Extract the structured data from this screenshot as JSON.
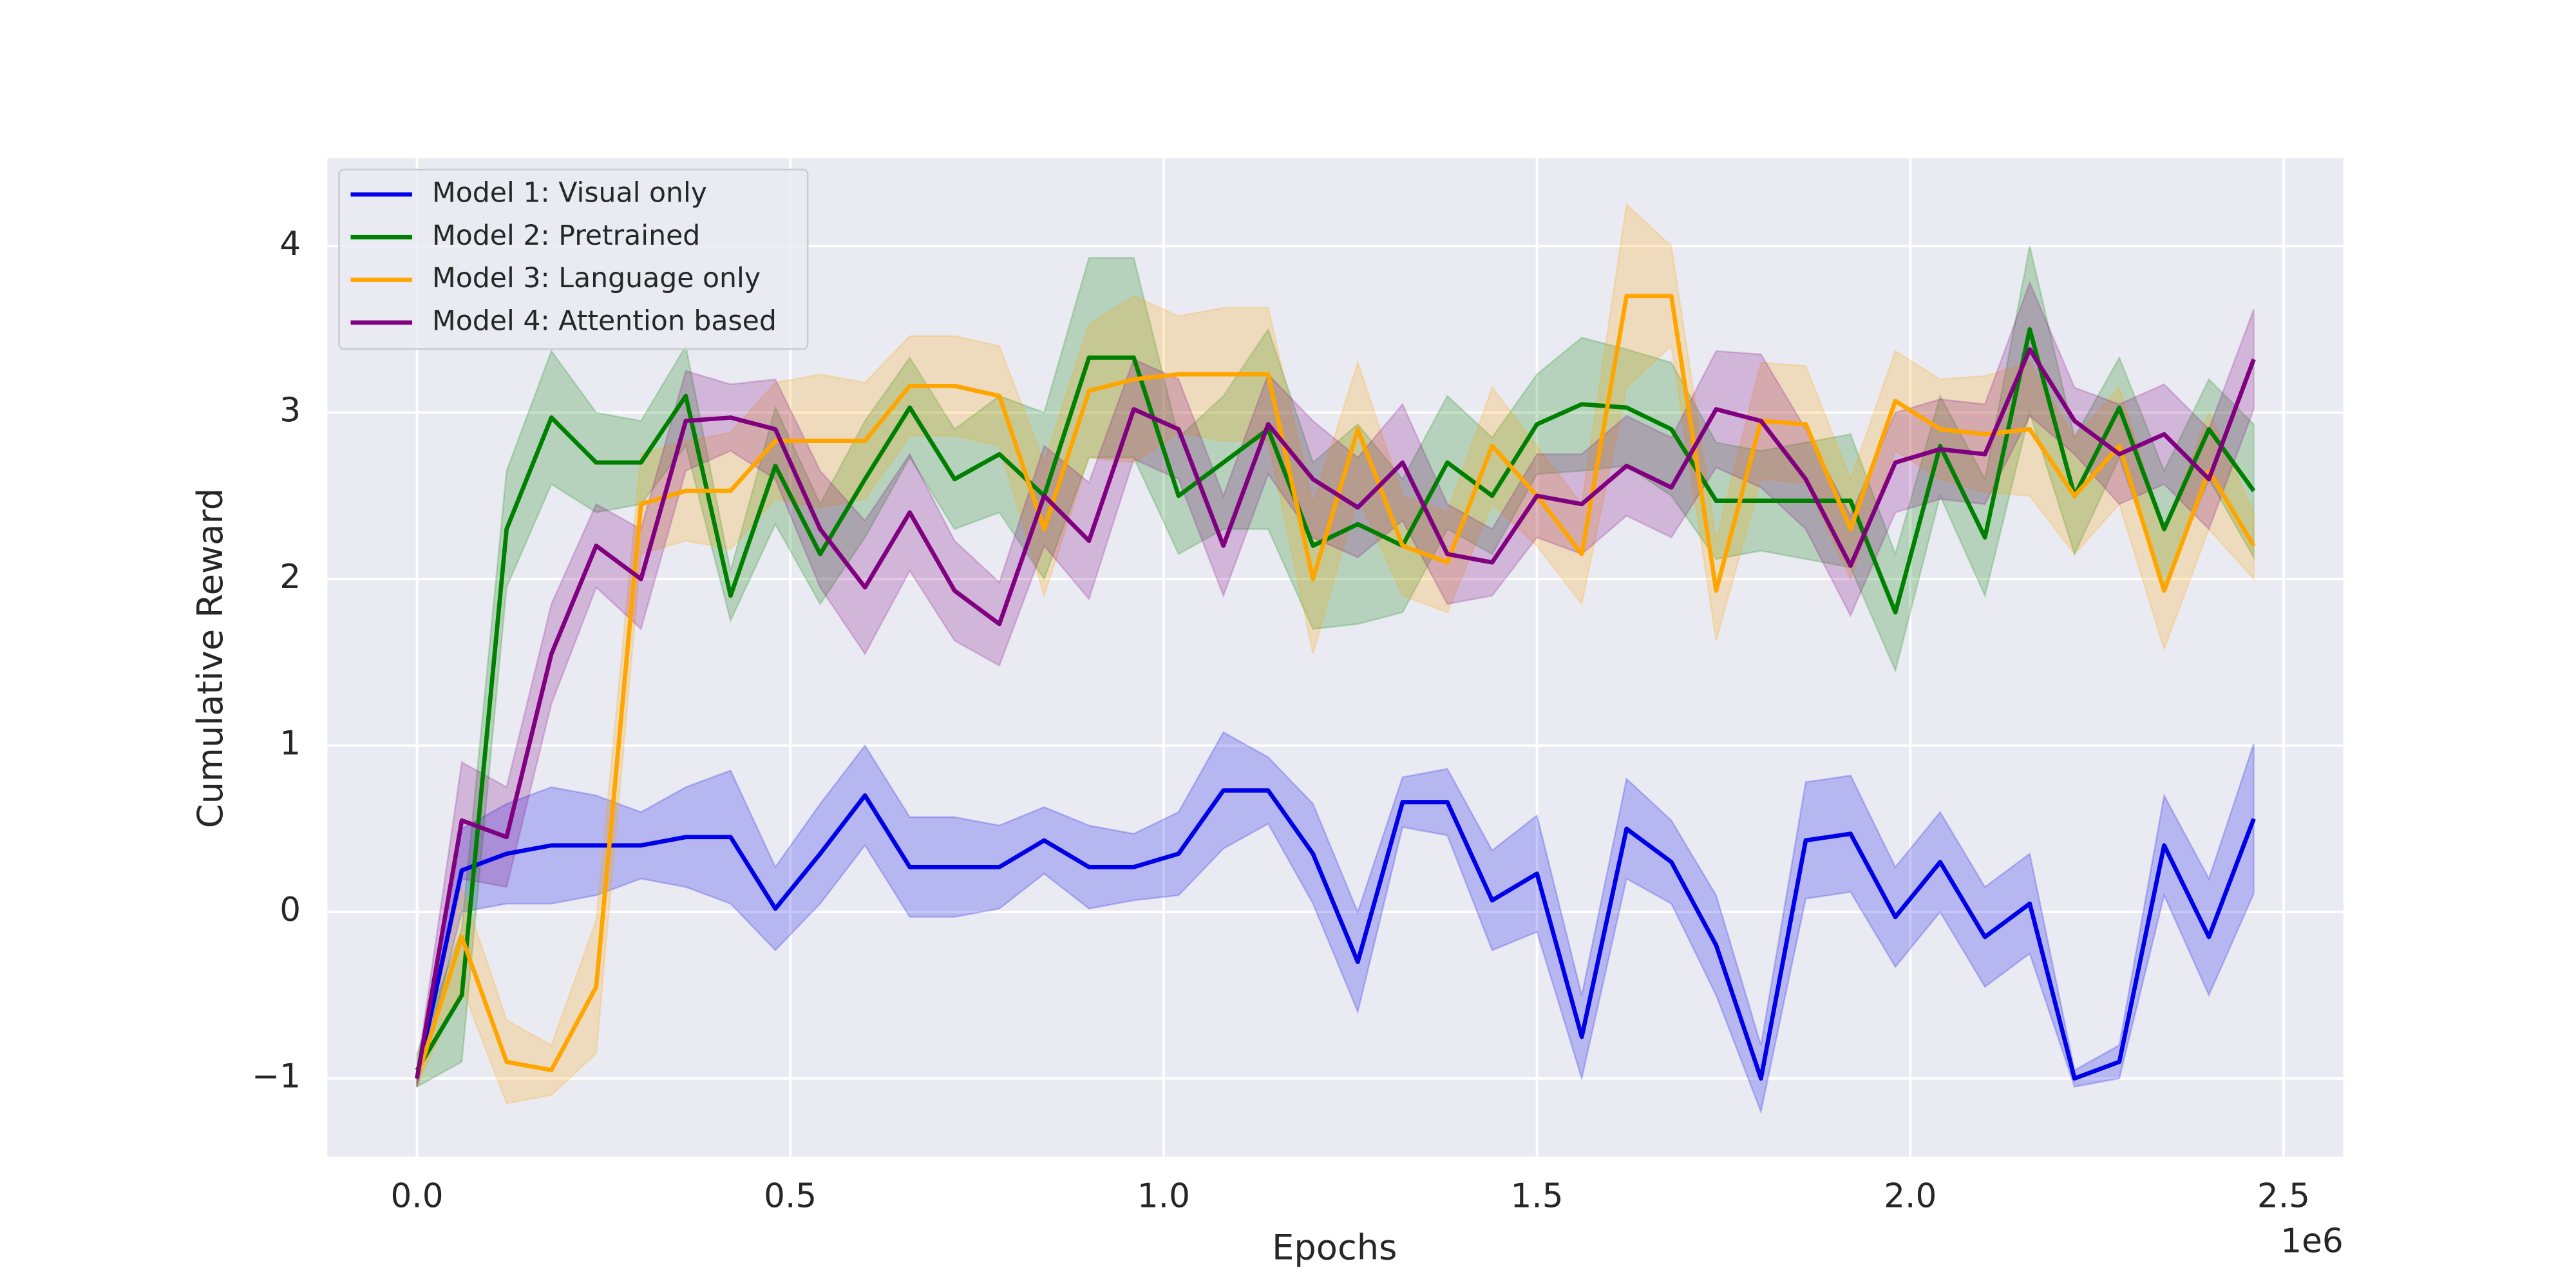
{
  "chart_data": {
    "type": "line",
    "xlabel": "Epochs",
    "ylabel": "Cumulative Reward",
    "x_offset_label": "1e6",
    "x": [
      0,
      0.06,
      0.12,
      0.18,
      0.24,
      0.3,
      0.36,
      0.42,
      0.48,
      0.54,
      0.6,
      0.66,
      0.72,
      0.78,
      0.84,
      0.9,
      0.96,
      1.02,
      1.08,
      1.14,
      1.2,
      1.26,
      1.32,
      1.38,
      1.44,
      1.5,
      1.56,
      1.62,
      1.68,
      1.74,
      1.8,
      1.86,
      1.92,
      1.98,
      2.04,
      2.1,
      2.16,
      2.22,
      2.28,
      2.34,
      2.4,
      2.46
    ],
    "series": [
      {
        "name": "Model 1: Visual only",
        "color": "#0000e6",
        "values": [
          -1,
          0.25,
          0.35,
          0.4,
          0.4,
          0.4,
          0.45,
          0.45,
          0.02,
          0.35,
          0.7,
          0.27,
          0.27,
          0.27,
          0.43,
          0.27,
          0.27,
          0.35,
          0.73,
          0.73,
          0.35,
          -0.3,
          0.66,
          0.66,
          0.07,
          0.23,
          -0.75,
          0.5,
          0.3,
          -0.2,
          -1.0,
          0.43,
          0.47,
          -0.03,
          0.3,
          -0.15,
          0.05,
          -1.0,
          -0.9,
          0.4,
          -0.15,
          0.56
        ],
        "errors": [
          0.05,
          0.25,
          0.3,
          0.35,
          0.3,
          0.2,
          0.3,
          0.4,
          0.25,
          0.3,
          0.3,
          0.3,
          0.3,
          0.25,
          0.2,
          0.25,
          0.2,
          0.25,
          0.35,
          0.2,
          0.3,
          0.3,
          0.15,
          0.2,
          0.3,
          0.35,
          0.25,
          0.3,
          0.25,
          0.3,
          0.2,
          0.35,
          0.35,
          0.3,
          0.3,
          0.3,
          0.3,
          0.05,
          0.1,
          0.3,
          0.35,
          0.45
        ]
      },
      {
        "name": "Model 2: Pretrained",
        "color": "#008000",
        "values": [
          -0.95,
          -0.5,
          2.3,
          2.97,
          2.7,
          2.7,
          3.1,
          1.9,
          2.68,
          2.15,
          2.6,
          3.03,
          2.6,
          2.75,
          2.5,
          3.33,
          3.33,
          2.5,
          2.7,
          2.9,
          2.2,
          2.33,
          2.2,
          2.7,
          2.5,
          2.93,
          3.05,
          3.03,
          2.9,
          2.47,
          2.47,
          2.47,
          2.47,
          1.8,
          2.8,
          2.25,
          3.5,
          2.5,
          3.03,
          2.3,
          2.9,
          2.53
        ],
        "errors": [
          0.1,
          0.4,
          0.35,
          0.4,
          0.3,
          0.25,
          0.3,
          0.15,
          0.35,
          0.3,
          0.35,
          0.3,
          0.3,
          0.35,
          0.5,
          0.6,
          0.6,
          0.35,
          0.4,
          0.6,
          0.5,
          0.6,
          0.4,
          0.4,
          0.35,
          0.3,
          0.4,
          0.35,
          0.4,
          0.35,
          0.3,
          0.35,
          0.4,
          0.35,
          0.3,
          0.35,
          0.5,
          0.35,
          0.3,
          0.35,
          0.3,
          0.4
        ]
      },
      {
        "name": "Model 3: Language only",
        "color": "#ffa500",
        "values": [
          -1,
          -0.15,
          -0.9,
          -0.95,
          -0.45,
          2.45,
          2.53,
          2.53,
          2.83,
          2.83,
          2.83,
          3.16,
          3.16,
          3.1,
          2.3,
          3.13,
          3.2,
          3.23,
          3.23,
          3.23,
          2.0,
          2.9,
          2.2,
          2.1,
          2.8,
          2.5,
          2.15,
          3.7,
          3.7,
          1.93,
          2.95,
          2.93,
          2.3,
          3.07,
          2.9,
          2.87,
          2.9,
          2.5,
          2.8,
          1.93,
          2.65,
          2.2
        ],
        "errors": [
          0.05,
          0.3,
          0.25,
          0.15,
          0.4,
          0.3,
          0.3,
          0.35,
          0.35,
          0.4,
          0.35,
          0.3,
          0.3,
          0.3,
          0.4,
          0.4,
          0.5,
          0.35,
          0.4,
          0.4,
          0.45,
          0.4,
          0.3,
          0.3,
          0.35,
          0.3,
          0.3,
          0.55,
          0.3,
          0.3,
          0.35,
          0.35,
          0.3,
          0.3,
          0.3,
          0.35,
          0.4,
          0.35,
          0.35,
          0.35,
          0.35,
          0.2
        ]
      },
      {
        "name": "Model 4: Attention based",
        "color": "#800080",
        "values": [
          -1,
          0.55,
          0.45,
          1.55,
          2.2,
          2.0,
          2.95,
          2.97,
          2.9,
          2.3,
          1.95,
          2.4,
          1.93,
          1.73,
          2.5,
          2.23,
          3.02,
          2.9,
          2.2,
          2.93,
          2.6,
          2.43,
          2.7,
          2.15,
          2.1,
          2.5,
          2.45,
          2.68,
          2.55,
          3.02,
          2.95,
          2.6,
          2.08,
          2.7,
          2.78,
          2.75,
          3.38,
          2.95,
          2.75,
          2.87,
          2.6,
          3.32
        ],
        "errors": [
          0.05,
          0.35,
          0.3,
          0.3,
          0.25,
          0.3,
          0.3,
          0.2,
          0.3,
          0.35,
          0.4,
          0.35,
          0.3,
          0.25,
          0.3,
          0.35,
          0.3,
          0.3,
          0.3,
          0.3,
          0.35,
          0.3,
          0.35,
          0.3,
          0.2,
          0.25,
          0.3,
          0.3,
          0.3,
          0.35,
          0.4,
          0.3,
          0.3,
          0.3,
          0.3,
          0.3,
          0.4,
          0.2,
          0.3,
          0.3,
          0.3,
          0.3
        ]
      }
    ],
    "xlim": [
      -0.12,
      2.58
    ],
    "ylim": [
      -1.47,
      4.53
    ],
    "xticks": [
      {
        "value": 0,
        "label": "0.0"
      },
      {
        "value": 0.5,
        "label": "0.5"
      },
      {
        "value": 1.0,
        "label": "1.0"
      },
      {
        "value": 1.5,
        "label": "1.5"
      },
      {
        "value": 2.0,
        "label": "2.0"
      },
      {
        "value": 2.5,
        "label": "2.5"
      }
    ],
    "yticks": [
      {
        "value": -1,
        "label": "−1"
      },
      0,
      1,
      2,
      3,
      4
    ],
    "grid": true,
    "legend": "upper left"
  }
}
